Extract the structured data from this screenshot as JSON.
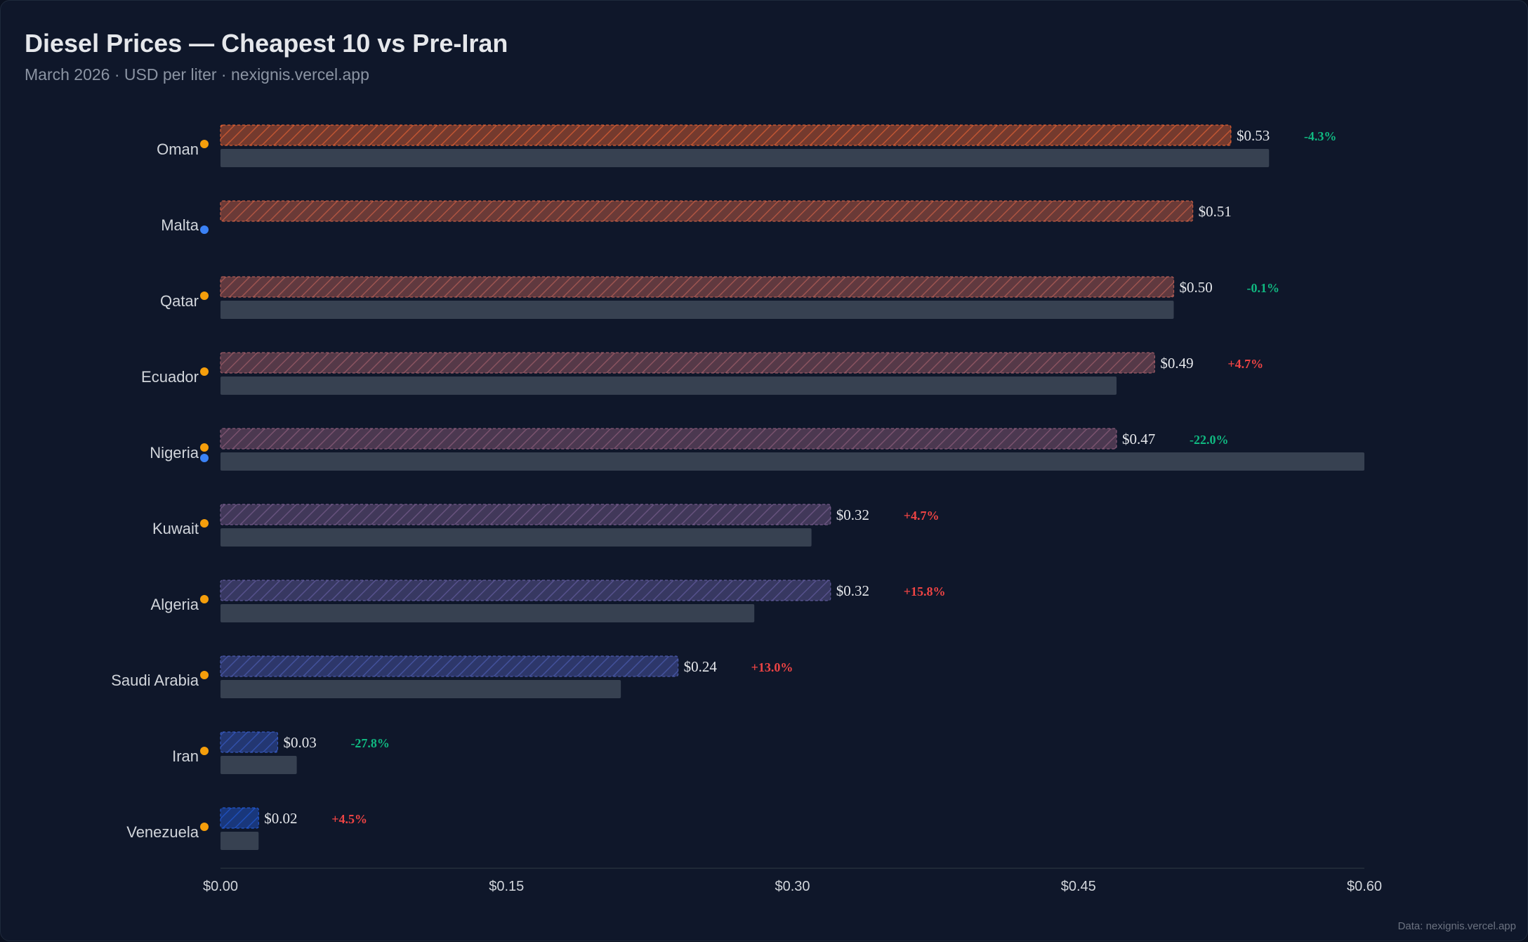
{
  "page": {
    "title": "Diesel Prices — Cheapest 10 vs Pre-Iran",
    "subtitle": "March 2026 · USD per liter · nexignis.vercel.app",
    "footer": "Data: nexignis.vercel.app"
  },
  "colors": {
    "background": "#0f172a",
    "pre_iran_bar": "#374151",
    "increase": "#ef4444",
    "decrease": "#10b981",
    "dot_orange": "#f59e0b",
    "dot_blue": "#3b82f6",
    "bar_gradient_top": "#ff6b35",
    "bar_gradient_bottom": "#2563eb"
  },
  "chart_data": {
    "type": "bar",
    "orientation": "horizontal",
    "title": "Diesel Prices — Cheapest 10 vs Pre-Iran",
    "categories": [
      "Oman",
      "Malta",
      "Qatar",
      "Ecuador",
      "Nigeria",
      "Kuwait",
      "Algeria",
      "Saudi Arabia",
      "Iran",
      "Venezuela"
    ],
    "series": [
      {
        "values": [
          0.53,
          0.51,
          0.5,
          0.49,
          0.47,
          0.32,
          0.32,
          0.24,
          0.03,
          0.02
        ],
        "value_labels": [
          "$0.53",
          "$0.51",
          "$0.50",
          "$0.49",
          "$0.47",
          "$0.32",
          "$0.32",
          "$0.24",
          "$0.03",
          "$0.02"
        ],
        "style": "hatched"
      },
      {
        "values": [
          0.55,
          null,
          0.5,
          0.47,
          0.6,
          0.31,
          0.28,
          0.21,
          0.04,
          0.02
        ],
        "style": "solid-gray"
      }
    ],
    "change_labels": [
      "-4.3%",
      "",
      "-0.1%",
      "+4.7%",
      "-22.0%",
      "+4.7%",
      "+15.8%",
      "+13.0%",
      "-27.8%",
      "+4.5%"
    ],
    "dots": [
      [
        "orange"
      ],
      [
        "blue"
      ],
      [
        "orange"
      ],
      [
        "orange"
      ],
      [
        "orange",
        "blue"
      ],
      [
        "orange"
      ],
      [
        "orange"
      ],
      [
        "orange"
      ],
      [
        "orange"
      ],
      [
        "orange"
      ]
    ],
    "x_ticks": [
      "$0.00",
      "$0.15",
      "$0.30",
      "$0.45",
      "$0.60"
    ],
    "x_tick_values": [
      0,
      0.15,
      0.3,
      0.45,
      0.6
    ],
    "xlim": [
      0,
      0.6
    ],
    "xlabel": "",
    "ylabel": "",
    "grid": false,
    "legend": "none"
  }
}
